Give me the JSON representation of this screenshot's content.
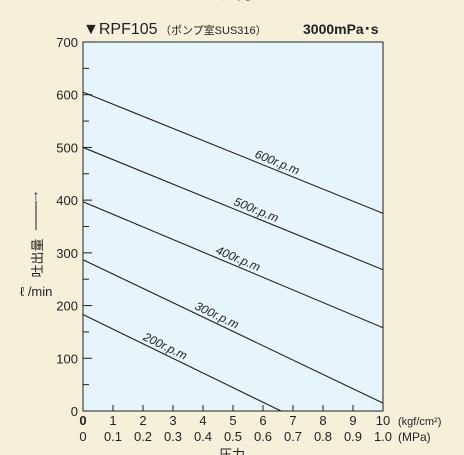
{
  "header": {
    "top_cut_text": "圧力",
    "model": "▼RPF105",
    "note": "（ポンプ室SUS316）",
    "viscosity": "3000mPa･s"
  },
  "colors": {
    "background": "#f6efd9",
    "plot_area": "#e6f4fb",
    "line": "#231f20"
  },
  "chart_data": {
    "type": "line",
    "xlabel": "圧力",
    "ylabel_arrow": "↑",
    "ylabel": "吐出量",
    "yunit": "ℓ /min",
    "xunit_kgf": "(kgf/cm²)",
    "xunit_mpa": "(MPa)",
    "xlim": [
      0,
      10
    ],
    "ylim": [
      0,
      700
    ],
    "x_ticks_kgf": [
      "0",
      "1",
      "2",
      "3",
      "4",
      "5",
      "6",
      "7",
      "8",
      "9",
      "10"
    ],
    "x_ticks_mpa": [
      "0",
      "0.1",
      "0.2",
      "0.3",
      "0.4",
      "0.5",
      "0.6",
      "0.7",
      "0.8",
      "0.9",
      "1.0"
    ],
    "y_ticks": [
      "0",
      "100",
      "200",
      "300",
      "400",
      "500",
      "600",
      "700"
    ],
    "series": [
      {
        "name": "600r.p.m",
        "x": [
          0,
          10
        ],
        "y": [
          605,
          375
        ]
      },
      {
        "name": "500r.p.m",
        "x": [
          0,
          10
        ],
        "y": [
          500,
          268
        ]
      },
      {
        "name": "400r.p.m",
        "x": [
          0,
          10
        ],
        "y": [
          397,
          158
        ]
      },
      {
        "name": "300r.p.m",
        "x": [
          0,
          10
        ],
        "y": [
          287,
          15
        ]
      },
      {
        "name": "200r.p.m",
        "x": [
          0,
          6.6
        ],
        "y": [
          183,
          0
        ]
      }
    ],
    "grid": false
  }
}
